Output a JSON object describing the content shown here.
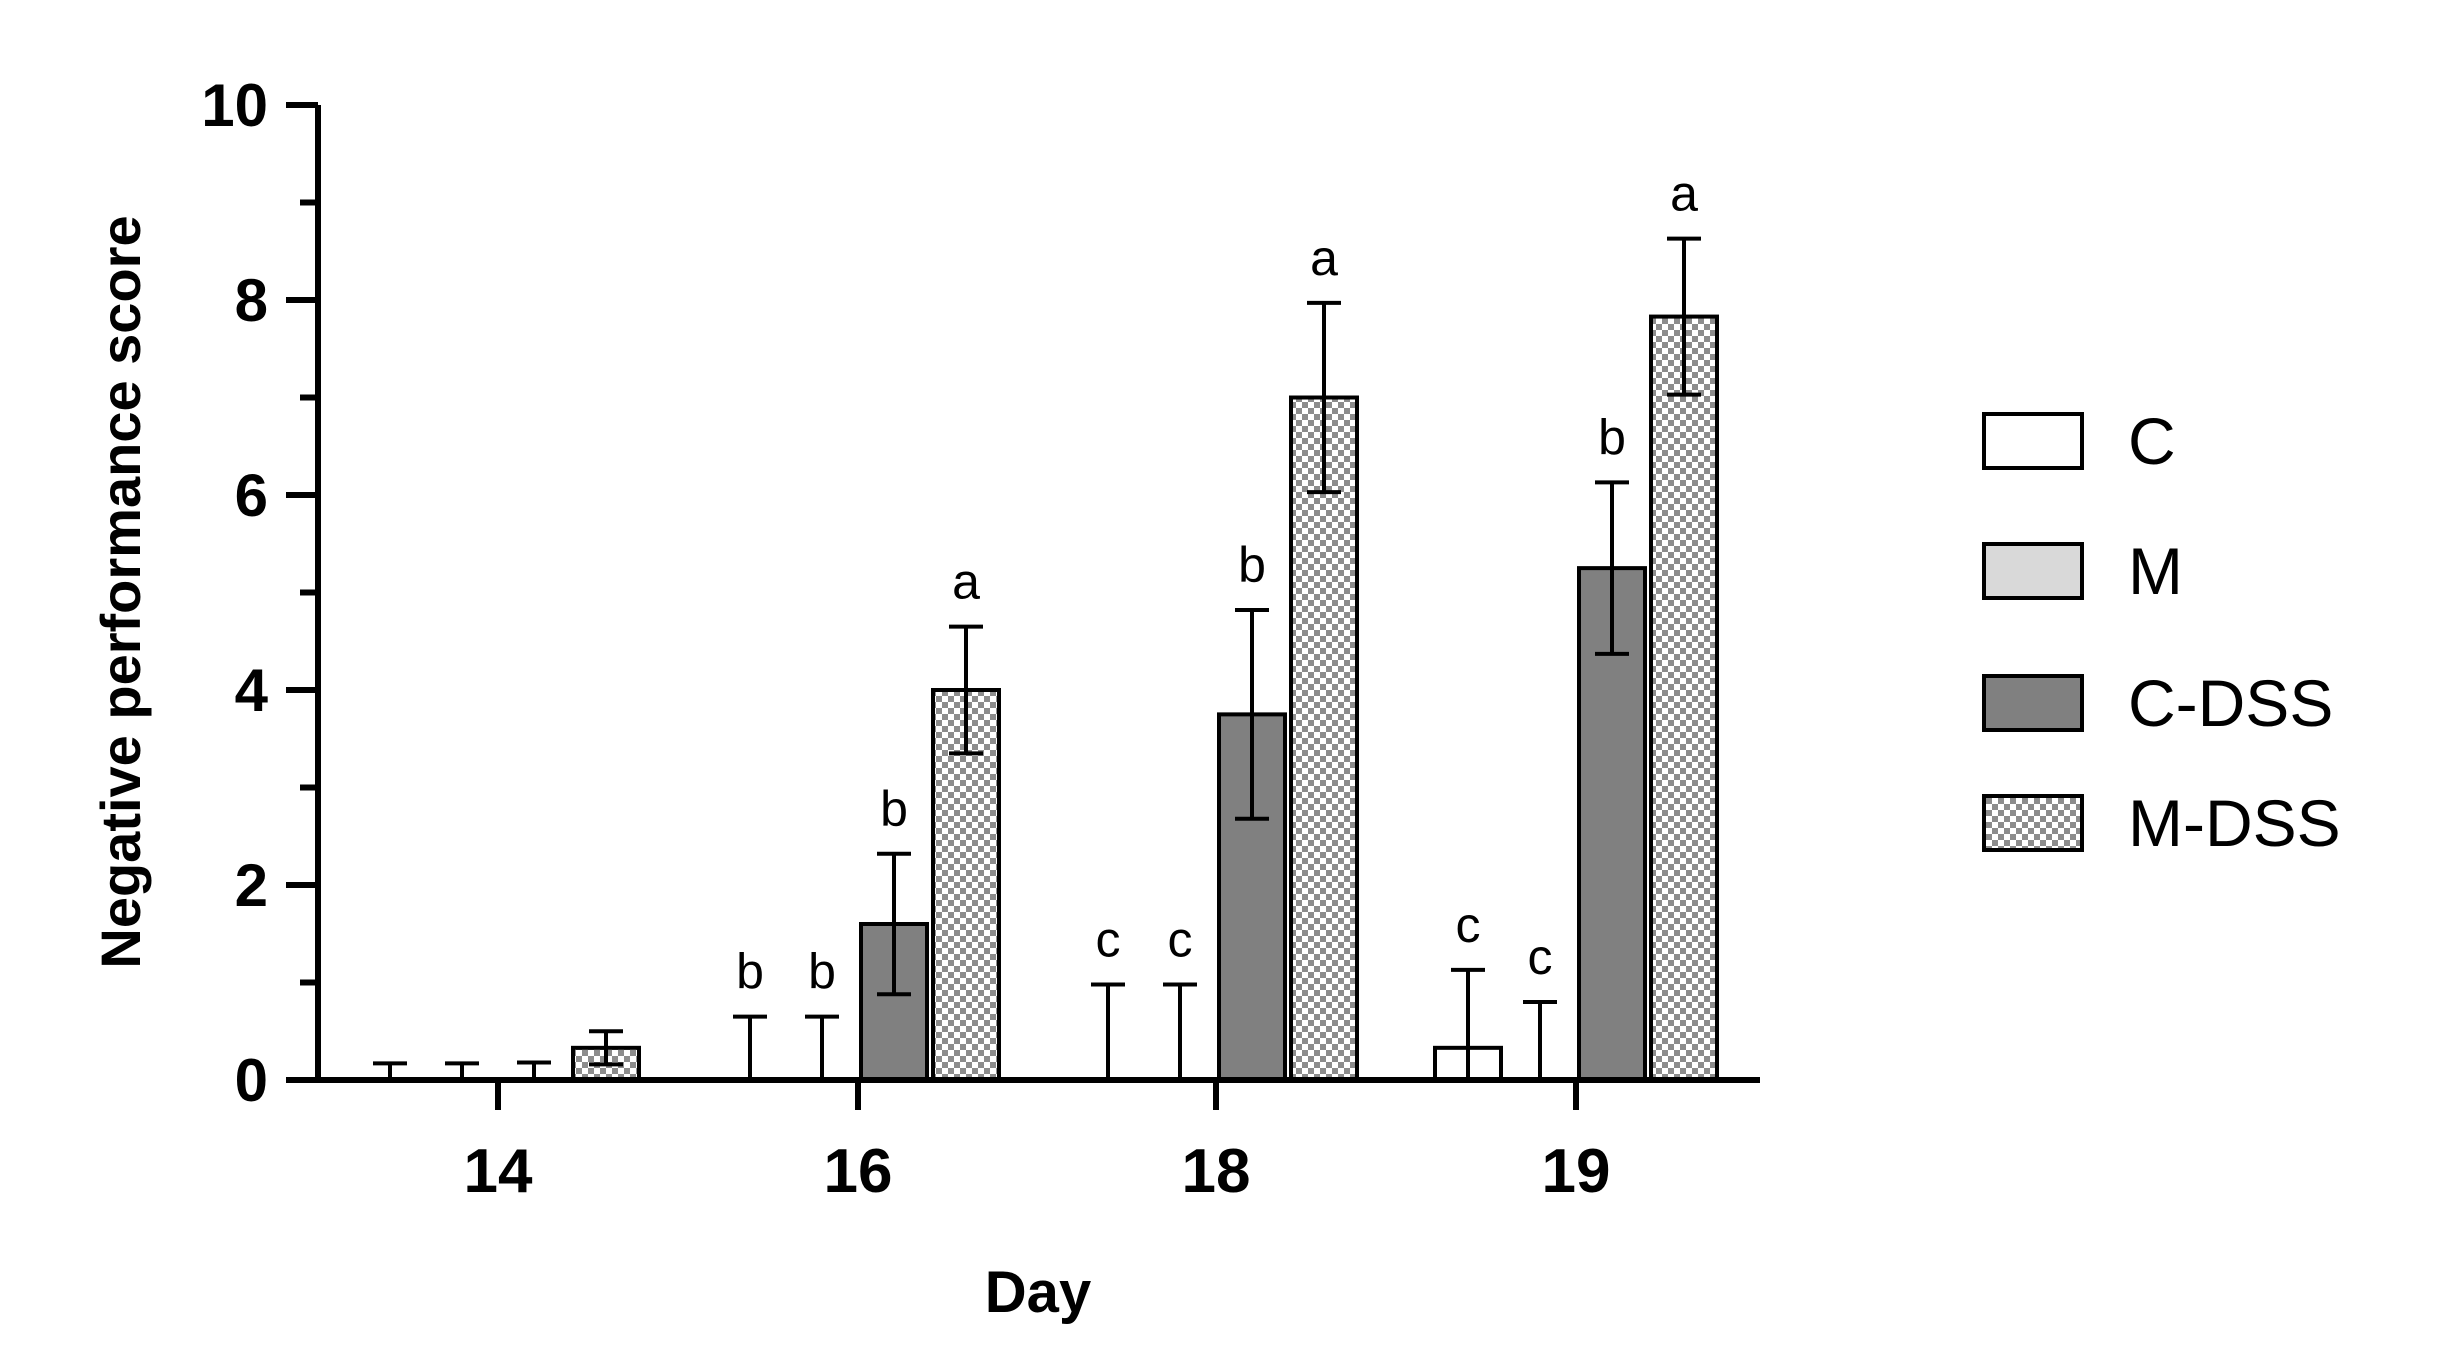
{
  "chart_data": {
    "type": "bar",
    "xlabel": "Day",
    "ylabel": "Negative performance score",
    "ylim": [
      0,
      10
    ],
    "y_ticks": [
      "0",
      "2",
      "4",
      "6",
      "8",
      "10"
    ],
    "categories": [
      "14",
      "16",
      "18",
      "19"
    ],
    "series": [
      {
        "name": "C",
        "fill": "#ffffff",
        "values": [
          0,
          0,
          0,
          0.33
        ],
        "errors": [
          0.17,
          0.65,
          0.98,
          0.8
        ],
        "labels": [
          "",
          "b",
          "c",
          "c"
        ]
      },
      {
        "name": "M",
        "fill": "#d9d9d9",
        "values": [
          0,
          0,
          0,
          0
        ],
        "errors": [
          0.17,
          0.65,
          0.98,
          0.8
        ],
        "labels": [
          "",
          "b",
          "c",
          "c"
        ]
      },
      {
        "name": "C-DSS",
        "fill": "#808080",
        "values": [
          0,
          1.6,
          3.75,
          5.25
        ],
        "errors": [
          0.18,
          0.72,
          1.07,
          0.88
        ],
        "labels": [
          "",
          "b",
          "b",
          "b"
        ]
      },
      {
        "name": "M-DSS",
        "fill": "checkered",
        "values": [
          0.33,
          4.0,
          7.0,
          7.83
        ],
        "errors": [
          0.17,
          0.65,
          0.97,
          0.8
        ],
        "labels": [
          "",
          "a",
          "a",
          "a"
        ]
      }
    ],
    "legend_position": "right",
    "grid": false
  }
}
